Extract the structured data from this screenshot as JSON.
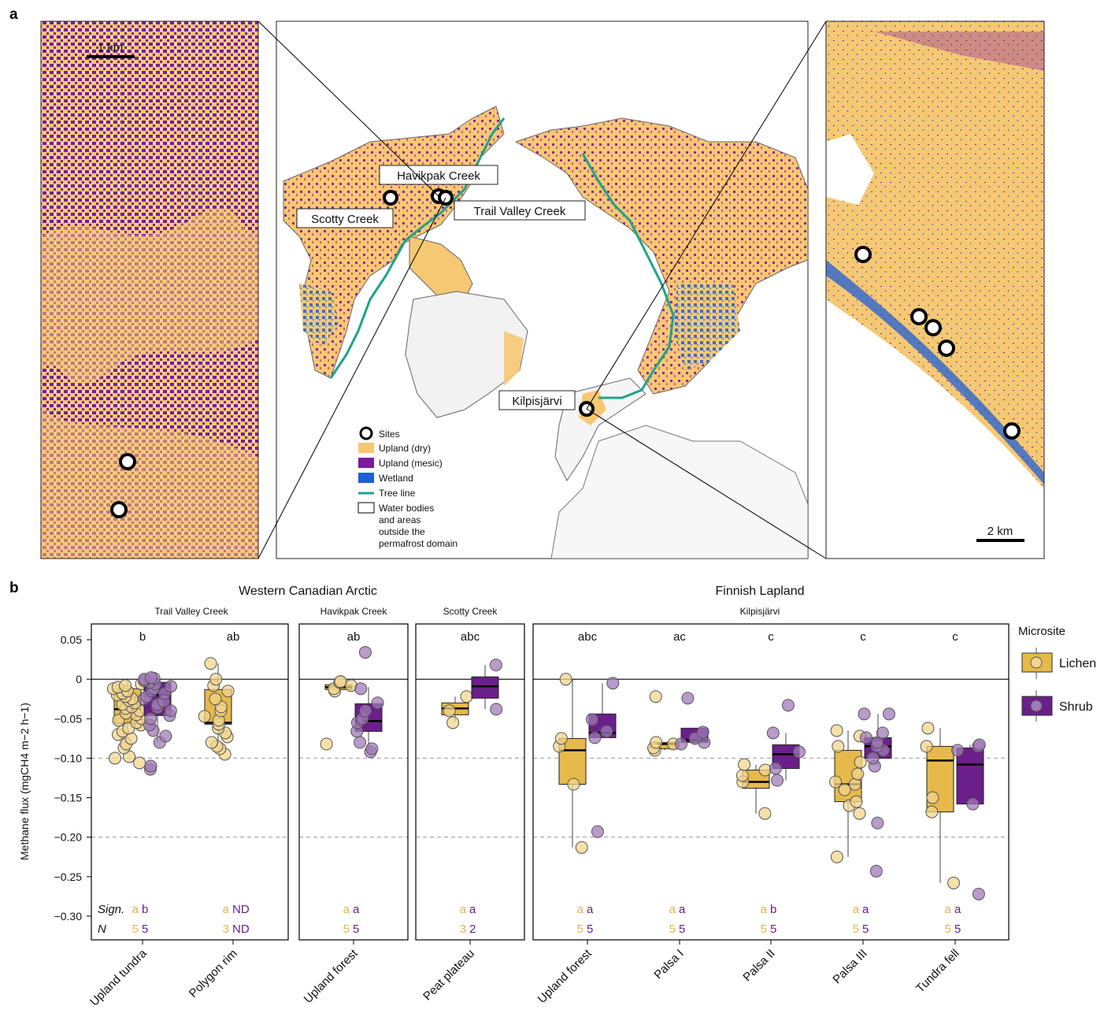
{
  "panel_a": {
    "letter": "a",
    "left_scale": "1 km",
    "right_scale": "2 km",
    "site_labels": {
      "havikpak": "Havikpak Creek",
      "scotty": "Scotty Creek",
      "trail": "Trail Valley Creek",
      "kilpisjarvi": "Kilpisjärvi"
    },
    "legend": {
      "sites": "Sites",
      "upland_dry": "Upland (dry)",
      "upland_mesic": "Upland (mesic)",
      "wetland": "Wetland",
      "tree_line": "Tree line",
      "water_1": "Water bodies",
      "water_2": "and areas",
      "water_3": "outside the",
      "water_4": "permafrost domain"
    },
    "colors": {
      "upland_dry": "#F7C873",
      "upland_mesic": "#7D1A9E",
      "wetland": "#1F5FD6",
      "tree_line": "#1FA38A"
    }
  },
  "panel_b": {
    "letter": "b",
    "region_titles": [
      "Western Canadian Arctic",
      "Finnish Lapland"
    ],
    "site_titles": [
      "Trail Valley Creek",
      "Havikpak Creek",
      "Scotty Creek",
      "Kilpisjärvi"
    ],
    "legend_title": "Microsite",
    "legend_items": [
      "Lichen",
      "Shrub"
    ],
    "row_labels": {
      "sign": "Sign.",
      "n": "N"
    }
  },
  "chart_data": {
    "type": "box",
    "ylabel": "Methane flux (mgCH4 m−2 h−1)",
    "ylim": [
      -0.33,
      0.07
    ],
    "yticks": [
      0.05,
      0,
      -0.05,
      -0.1,
      -0.15,
      -0.2,
      -0.25,
      -0.3
    ],
    "ytick_labels": [
      "0.05",
      "0",
      "−0.05",
      "−0.10",
      "−0.15",
      "−0.20",
      "−0.25",
      "−0.30"
    ],
    "reference_lines": [
      -0.1,
      -0.2
    ],
    "series_colors": {
      "Lichen": "#E6B94A",
      "Shrub": "#6A1F8A"
    },
    "categories": [
      "Upland tundra",
      "Polygon rim",
      "Upland forest",
      "Peat plateau",
      "Upland forest",
      "Palsa I",
      "Palsa II",
      "Palsa III",
      "Tundra fell"
    ],
    "groups": [
      {
        "category": "Upland tundra",
        "letter": "b",
        "sign": [
          "a",
          "b"
        ],
        "n": [
          "5",
          "5"
        ],
        "lichen": {
          "q1": -0.056,
          "median": -0.038,
          "q3": -0.012,
          "whislo": -0.075,
          "whishi": -0.003,
          "points": [
            -0.106,
            -0.1,
            -0.098,
            -0.087,
            -0.082,
            -0.075,
            -0.07,
            -0.066,
            -0.062,
            -0.058,
            -0.055,
            -0.052,
            -0.05,
            -0.045,
            -0.043,
            -0.04,
            -0.037,
            -0.035,
            -0.032,
            -0.03,
            -0.027,
            -0.025,
            -0.022,
            -0.02,
            -0.018,
            -0.015,
            -0.012,
            -0.01,
            -0.008,
            -0.006
          ]
        },
        "shrub": {
          "q1": -0.046,
          "median": -0.02,
          "q3": -0.004,
          "whislo": -0.08,
          "whishi": 0.003,
          "points": [
            -0.114,
            -0.11,
            -0.08,
            -0.072,
            -0.065,
            -0.058,
            -0.05,
            -0.046,
            -0.04,
            -0.036,
            -0.032,
            -0.028,
            -0.025,
            -0.022,
            -0.018,
            -0.015,
            -0.012,
            -0.009,
            -0.006,
            -0.004,
            -0.002,
            0.0,
            0.001,
            0.002
          ]
        }
      },
      {
        "category": "Polygon rim",
        "letter": "ab",
        "sign": [
          "a",
          "ND"
        ],
        "n": [
          "3",
          "ND"
        ],
        "lichen": {
          "q1": -0.057,
          "median": -0.055,
          "q3": -0.013,
          "whislo": -0.088,
          "whishi": 0.02,
          "points": [
            -0.095,
            -0.088,
            -0.085,
            -0.08,
            -0.073,
            -0.068,
            -0.062,
            -0.057,
            -0.052,
            -0.047,
            -0.04,
            -0.035,
            -0.025,
            -0.015,
            -0.008,
            0.0,
            0.02
          ]
        },
        "shrub": null
      },
      {
        "category": "Upland forest",
        "letter": "ab",
        "sign": [
          "a",
          "a"
        ],
        "n": [
          "5",
          "5"
        ],
        "lichen": {
          "q1": -0.013,
          "median": -0.01,
          "q3": -0.007,
          "whislo": -0.015,
          "whishi": -0.003,
          "points": [
            -0.082,
            -0.015,
            -0.012,
            -0.008,
            -0.004,
            -0.003
          ]
        },
        "shrub": {
          "q1": -0.066,
          "median": -0.053,
          "q3": -0.031,
          "whislo": -0.092,
          "whishi": -0.01,
          "points": [
            -0.092,
            -0.088,
            -0.08,
            -0.066,
            -0.055,
            -0.05,
            -0.04,
            -0.03,
            -0.012,
            0.034
          ]
        }
      },
      {
        "category": "Peat plateau",
        "letter": "abc",
        "sign": [
          "a",
          "a"
        ],
        "n": [
          "3",
          "2"
        ],
        "lichen": {
          "q1": -0.045,
          "median": -0.037,
          "q3": -0.03,
          "whislo": -0.054,
          "whishi": -0.022,
          "points": [
            -0.055,
            -0.04,
            -0.022
          ]
        },
        "shrub": {
          "q1": -0.024,
          "median": -0.009,
          "q3": 0.003,
          "whislo": -0.038,
          "whishi": 0.018,
          "points": [
            -0.038,
            0.018
          ]
        }
      },
      {
        "category": "Upland forest",
        "letter": "abc",
        "sign": [
          "a",
          "a"
        ],
        "n": [
          "5",
          "5"
        ],
        "lichen": {
          "q1": -0.133,
          "median": -0.09,
          "q3": -0.075,
          "whislo": -0.213,
          "whishi": 0.0,
          "points": [
            -0.213,
            -0.133,
            -0.085,
            -0.075,
            0.0
          ]
        },
        "shrub": {
          "q1": -0.074,
          "median": -0.068,
          "q3": -0.044,
          "whislo": -0.074,
          "whishi": -0.005,
          "points": [
            -0.193,
            -0.074,
            -0.066,
            -0.051,
            -0.005
          ]
        }
      },
      {
        "category": "Palsa I",
        "letter": "ac",
        "sign": [
          "a",
          "a"
        ],
        "n": [
          "5",
          "5"
        ],
        "lichen": {
          "q1": -0.088,
          "median": -0.082,
          "q3": -0.08,
          "whislo": -0.09,
          "whishi": -0.08,
          "points": [
            -0.09,
            -0.087,
            -0.082,
            -0.08,
            -0.022
          ]
        },
        "shrub": {
          "q1": -0.08,
          "median": -0.077,
          "q3": -0.062,
          "whislo": -0.082,
          "whishi": -0.062,
          "points": [
            -0.082,
            -0.08,
            -0.075,
            -0.067,
            -0.024
          ]
        }
      },
      {
        "category": "Palsa II",
        "letter": "c",
        "sign": [
          "a",
          "b"
        ],
        "n": [
          "5",
          "5"
        ],
        "lichen": {
          "q1": -0.138,
          "median": -0.13,
          "q3": -0.115,
          "whislo": -0.17,
          "whishi": -0.108,
          "points": [
            -0.17,
            -0.13,
            -0.122,
            -0.115,
            -0.108
          ]
        },
        "shrub": {
          "q1": -0.113,
          "median": -0.095,
          "q3": -0.083,
          "whislo": -0.128,
          "whishi": -0.068,
          "points": [
            -0.128,
            -0.113,
            -0.092,
            -0.068,
            -0.033
          ]
        }
      },
      {
        "category": "Palsa III",
        "letter": "c",
        "sign": [
          "a",
          "a"
        ],
        "n": [
          "5",
          "5"
        ],
        "lichen": {
          "q1": -0.155,
          "median": -0.133,
          "q3": -0.09,
          "whislo": -0.225,
          "whishi": -0.065,
          "points": [
            -0.225,
            -0.17,
            -0.16,
            -0.155,
            -0.14,
            -0.133,
            -0.13,
            -0.12,
            -0.105,
            -0.085,
            -0.072,
            -0.065
          ]
        },
        "shrub": {
          "q1": -0.1,
          "median": -0.085,
          "q3": -0.074,
          "whislo": -0.11,
          "whishi": -0.044,
          "points": [
            -0.243,
            -0.182,
            -0.11,
            -0.1,
            -0.09,
            -0.085,
            -0.08,
            -0.074,
            -0.068,
            -0.044,
            -0.044
          ]
        }
      },
      {
        "category": "Tundra fell",
        "letter": "c",
        "sign": [
          "a",
          "a"
        ],
        "n": [
          "5",
          "5"
        ],
        "lichen": {
          "q1": -0.168,
          "median": -0.103,
          "q3": -0.085,
          "whislo": -0.258,
          "whishi": -0.062,
          "points": [
            -0.258,
            -0.168,
            -0.15,
            -0.085,
            -0.062
          ]
        },
        "shrub": {
          "q1": -0.158,
          "median": -0.108,
          "q3": -0.087,
          "whislo": -0.158,
          "whishi": -0.083,
          "points": [
            -0.272,
            -0.158,
            -0.09,
            -0.085,
            -0.083
          ]
        }
      }
    ]
  }
}
